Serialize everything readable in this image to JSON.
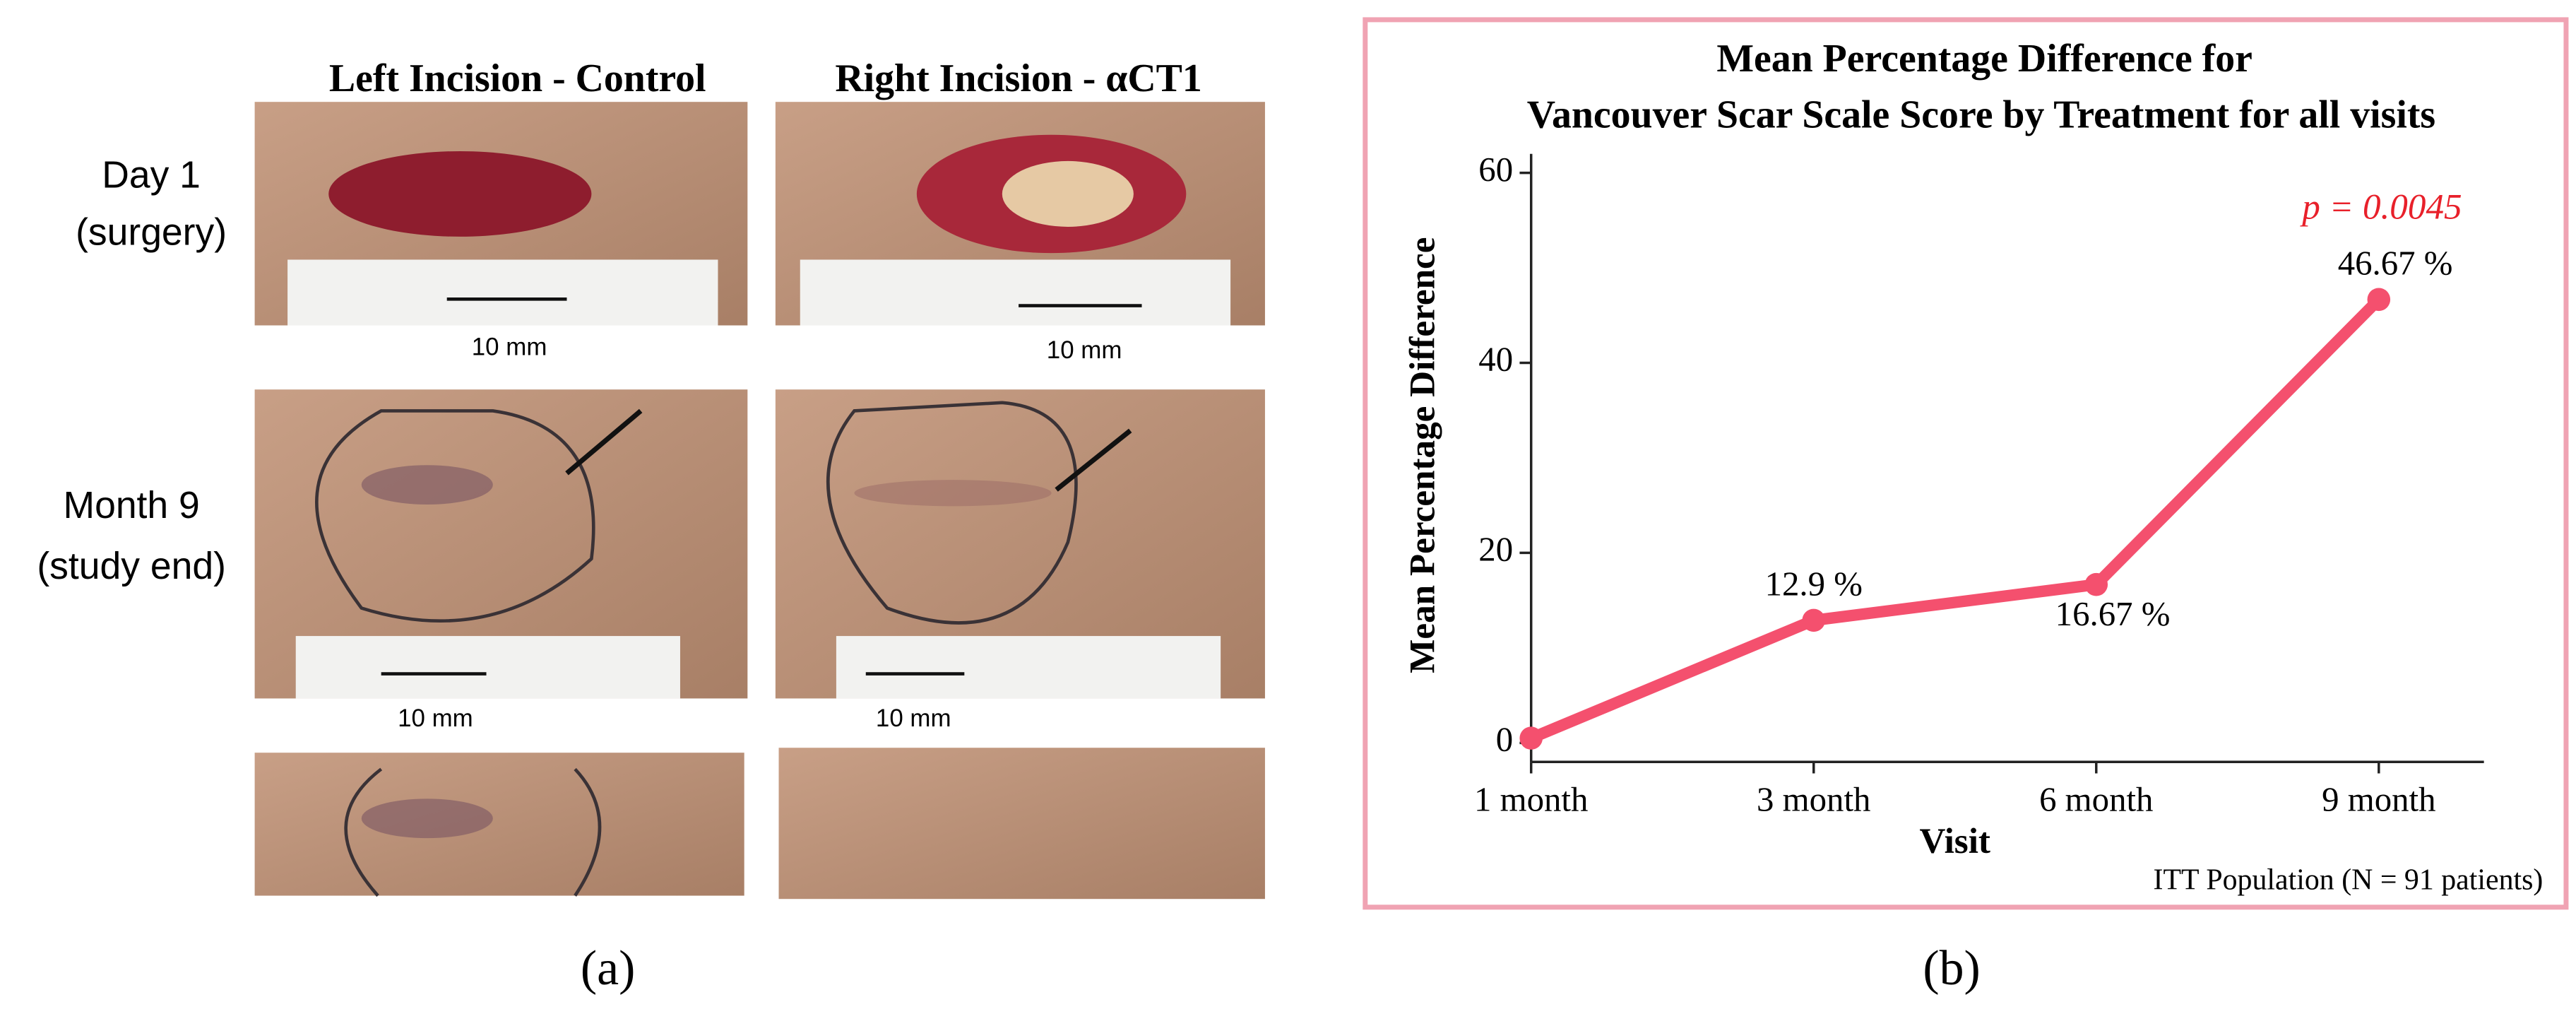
{
  "panel_a": {
    "column_headers": [
      "Left Incision - Control",
      "Right Incision - αCT1"
    ],
    "row_labels": [
      [
        "Day 1",
        "(surgery)"
      ],
      [
        "Month 9",
        "(study end)"
      ]
    ],
    "scale_labels": [
      "10 mm",
      "10 mm",
      "10 mm",
      "10 mm"
    ],
    "caption": "(a)"
  },
  "panel_b_caption": "(b)",
  "chart_data": {
    "type": "line",
    "title": [
      "Mean Percentage Difference for",
      "Vancouver Scar Scale Score by Treatment for all visits"
    ],
    "x_label": "Visit",
    "y_label": "Mean Percentage Difference",
    "categories": [
      "1 month",
      "3 month",
      "6 month",
      "9 month"
    ],
    "values": [
      0.5,
      12.9,
      16.67,
      46.67
    ],
    "value_labels": [
      null,
      "12.9 %",
      "16.67 %",
      "46.67 %"
    ],
    "color": "#f4506e",
    "ylim": [
      -2,
      62
    ],
    "yticks": [
      0,
      20,
      40,
      60
    ],
    "annotation": "p = 0.0045",
    "note": "ITT Population (N = 91 patients)"
  }
}
